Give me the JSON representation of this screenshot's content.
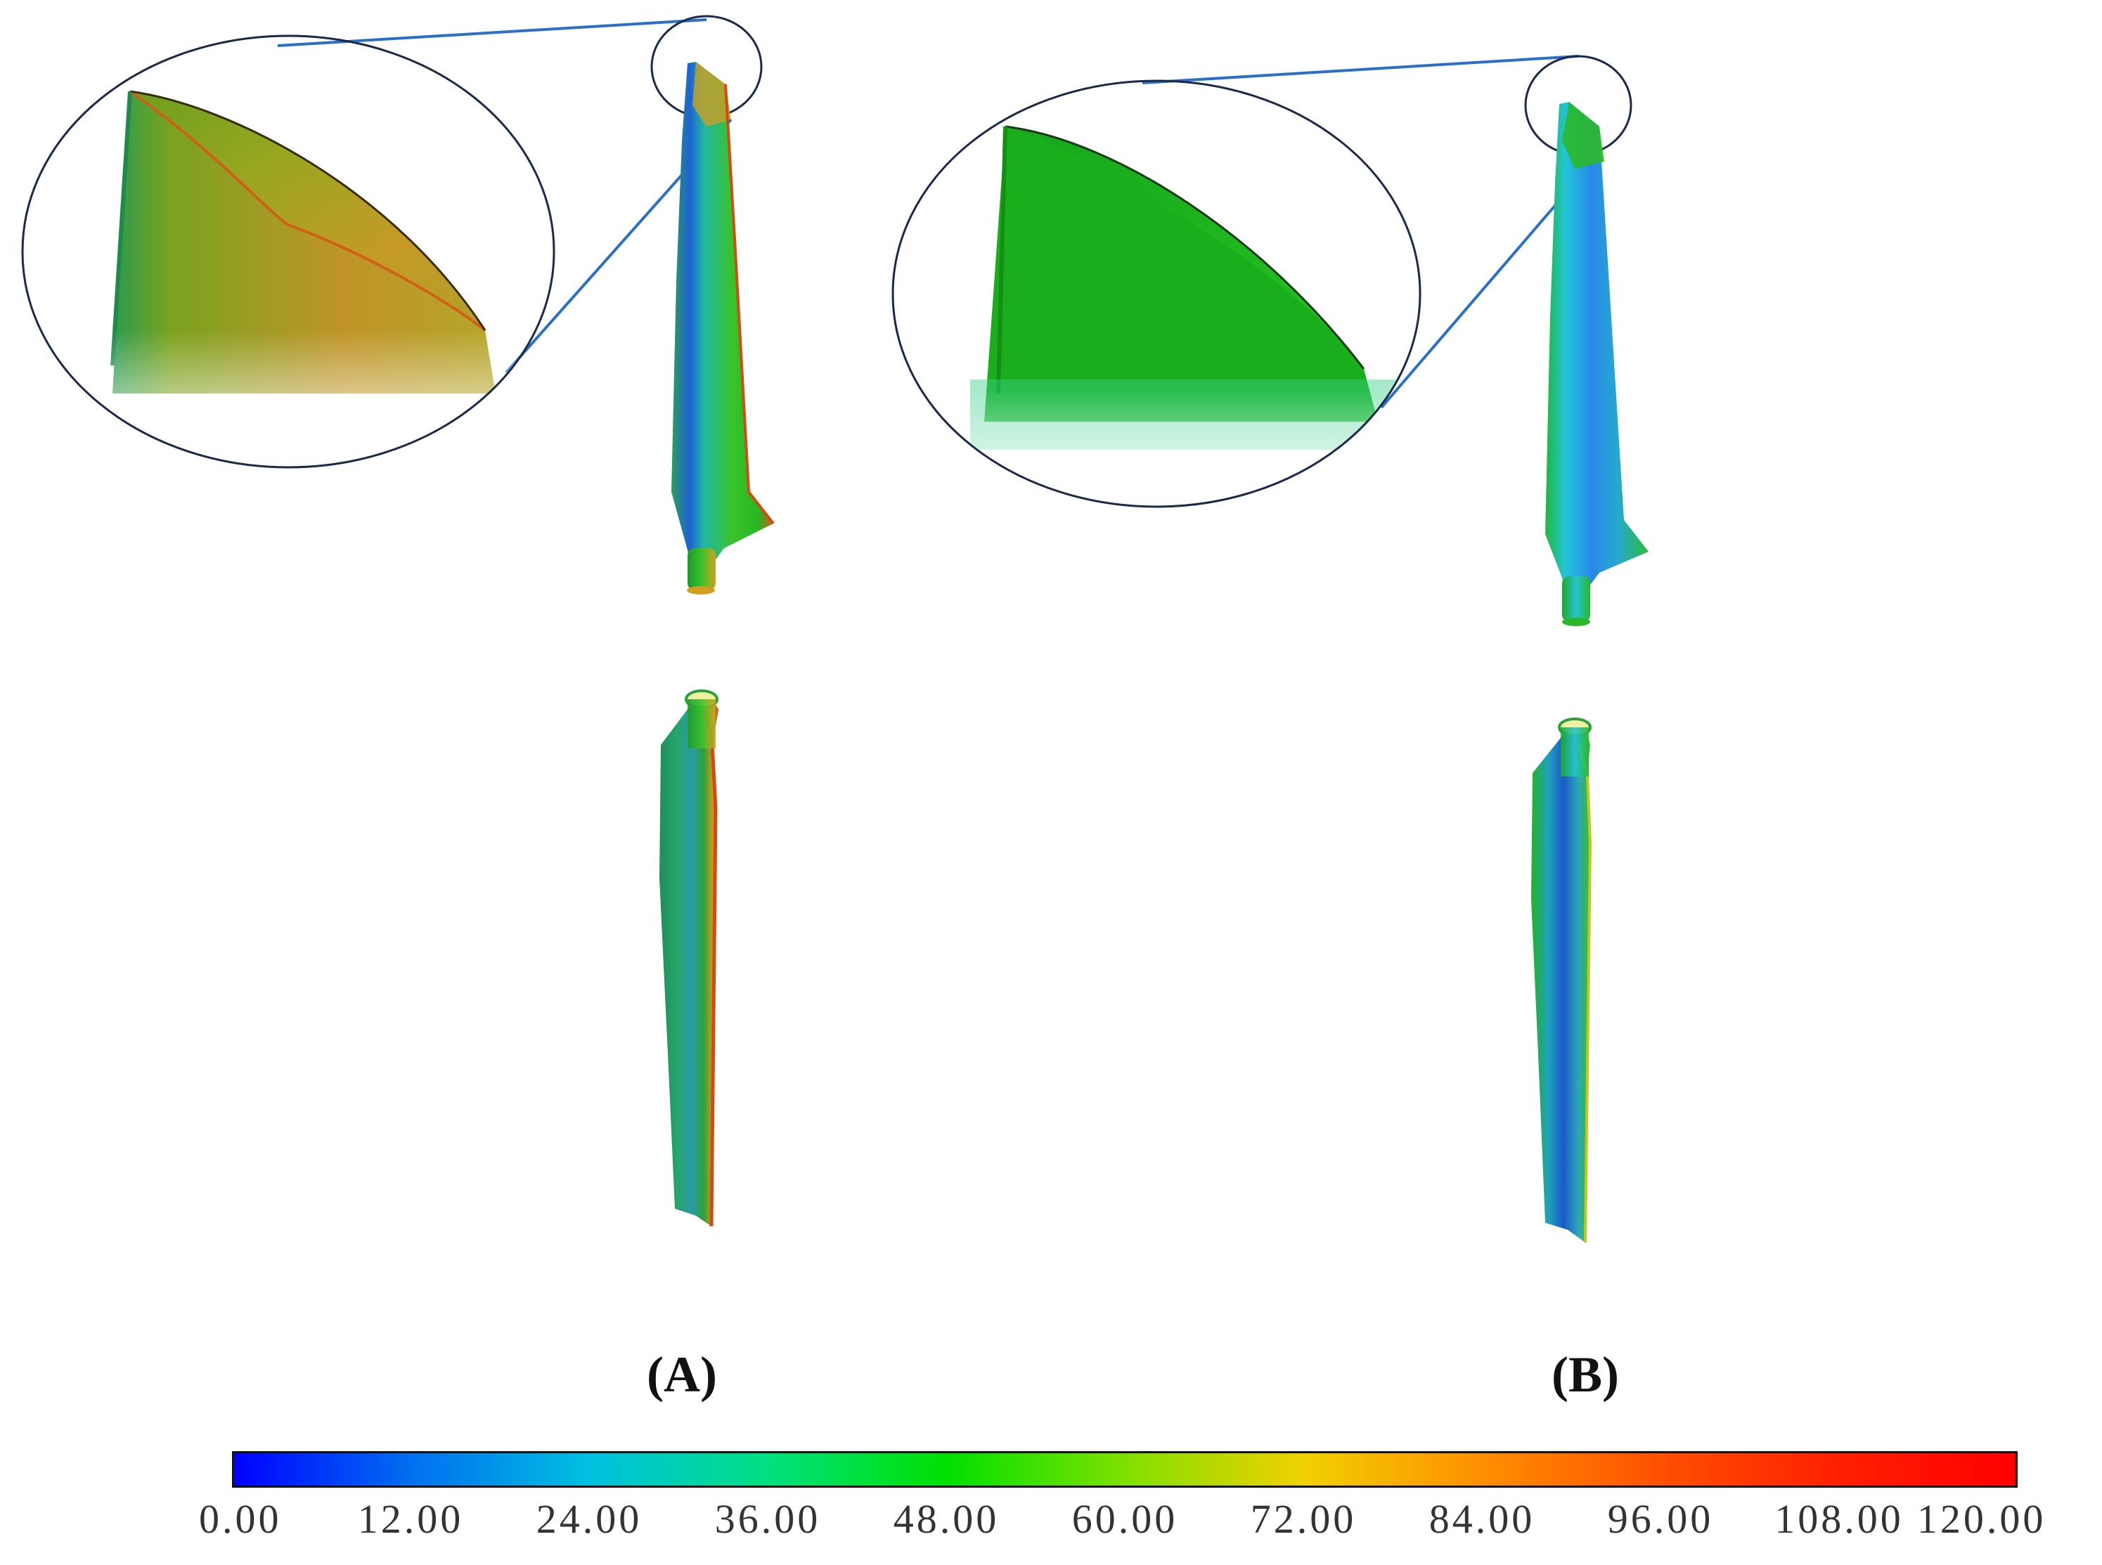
{
  "panels": {
    "a_label": "(A)",
    "b_label": "(B)"
  },
  "colorbar": {
    "min": 0,
    "max": 120,
    "ticks": [
      "0.00",
      "12.00",
      "24.00",
      "36.00",
      "48.00",
      "60.00",
      "72.00",
      "84.00",
      "96.00",
      "108.00",
      "120.00"
    ],
    "colors": [
      "#0000ff",
      "#0070f0",
      "#00c0e0",
      "#00e080",
      "#00e000",
      "#80e000",
      "#f0d000",
      "#ff9000",
      "#ff5000",
      "#ff2000",
      "#ff0000"
    ]
  },
  "surface_colors": {
    "green": "#1fbf2a",
    "blue": "#1f6fe0",
    "cyan": "#22c8b0",
    "orange": "#d0901a",
    "red": "#e03010",
    "yellow": "#c9c51a",
    "connector": "#2a6fc9",
    "outline": "#1a2a4a"
  }
}
